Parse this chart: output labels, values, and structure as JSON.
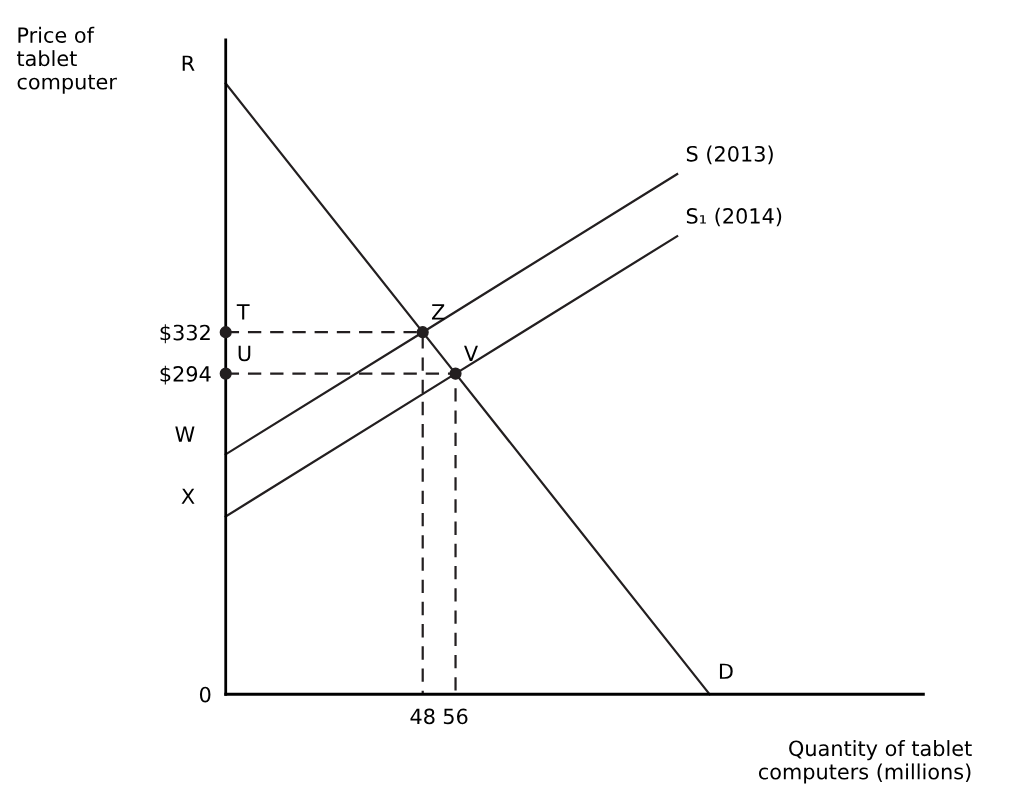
{
  "chart_data": {
    "type": "line",
    "xlabel": "Quantity of tablet\ncomputers (millions)",
    "ylabel": "Price of\ntablet\ncomputer",
    "xlim": [
      0,
      170
    ],
    "ylim": [
      0,
      600
    ],
    "xticks": [
      48,
      56
    ],
    "yticks": [
      {
        "value": 0,
        "label": "0"
      },
      {
        "value": 294,
        "label": "$294"
      },
      {
        "value": 332,
        "label": "$332"
      }
    ],
    "grid": false,
    "tick_labels": true,
    "series": [
      {
        "color": "#231f20",
        "line_style": "solid",
        "marker": "none",
        "x": [
          0,
          48,
          56,
          117.9
        ],
        "values": [
          560,
          332,
          294,
          0
        ]
      },
      {
        "color": "#231f20",
        "line_style": "solid",
        "marker": "none",
        "x": [
          0,
          48,
          110
        ],
        "values": [
          220,
          332,
          477
        ]
      },
      {
        "color": "#231f20",
        "line_style": "solid",
        "marker": "none",
        "x": [
          0,
          56,
          110
        ],
        "values": [
          163,
          294,
          420
        ]
      },
      {
        "color": "#231f20",
        "line_style": "dashed",
        "marker": "none",
        "x": [
          0,
          48,
          48
        ],
        "values": [
          332,
          332,
          0
        ]
      },
      {
        "color": "#231f20",
        "line_style": "dashed",
        "marker": "none",
        "x": [
          0,
          56,
          56
        ],
        "values": [
          294,
          294,
          0
        ]
      },
      {
        "type": "scatter",
        "color": "#231f20",
        "marker": "circle",
        "x": [
          0,
          0,
          48,
          56
        ],
        "values": [
          332,
          294,
          332,
          294
        ]
      }
    ],
    "annotations": [
      {
        "text": "R",
        "x": 0,
        "y": 560
      },
      {
        "text": "T",
        "x": 0,
        "y": 332
      },
      {
        "text": "U",
        "x": 0,
        "y": 294
      },
      {
        "text": "W",
        "x": 0,
        "y": 220
      },
      {
        "text": "X",
        "x": 0,
        "y": 163
      },
      {
        "text": "Z",
        "x": 48,
        "y": 332
      },
      {
        "text": "V",
        "x": 56,
        "y": 294
      },
      {
        "text": "D",
        "x": 117.9,
        "y": 0
      },
      {
        "text": "S (2013)",
        "x": 110,
        "y": 477
      },
      {
        "text": "S₁ (2014)",
        "x": 110,
        "y": 420
      }
    ]
  }
}
